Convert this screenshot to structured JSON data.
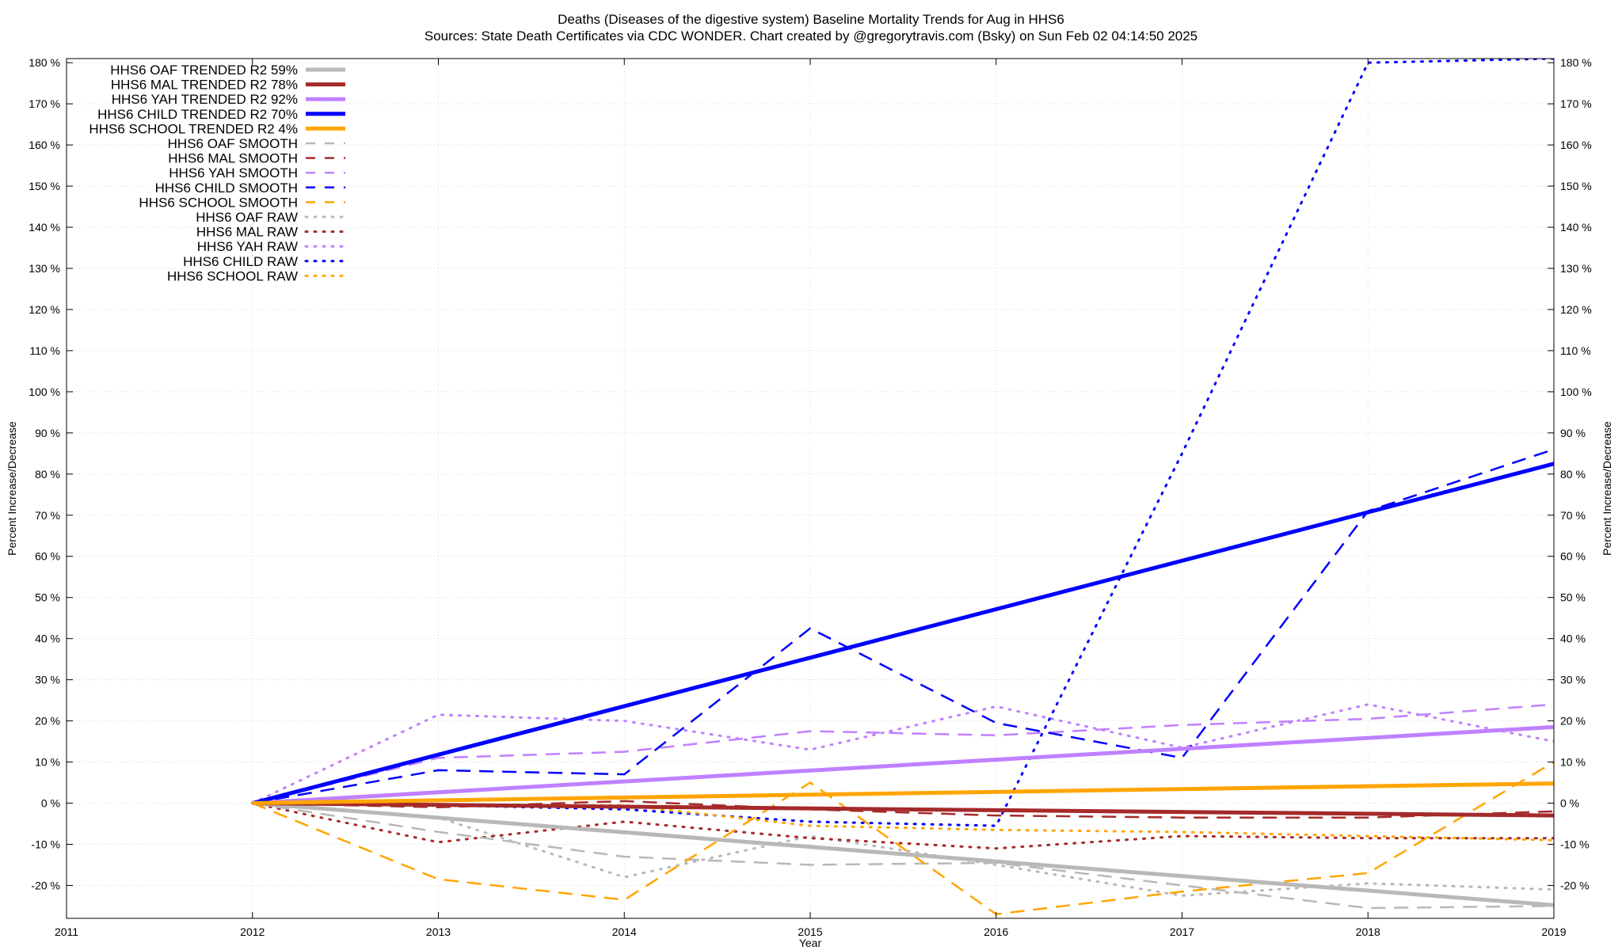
{
  "header": {
    "title_line1": "Deaths (Diseases of the digestive system)  Baseline Mortality Trends for Aug in HHS6",
    "title_line2": "Sources: State Death Certificates via CDC WONDER.              Chart created by @gregorytravis.com (Bsky) on Sun Feb 02 04:14:50 2025"
  },
  "chart_data": {
    "type": "line",
    "title": "Deaths (Diseases of the digestive system)  Baseline Mortality Trends for Aug in HHS6",
    "xlabel": "Year",
    "ylabel": "Percent Increase/Decrease",
    "y2label": "Percent Increase/Decrease",
    "xlim": [
      2011,
      2019
    ],
    "ylim": [
      -28,
      181
    ],
    "x_ticks": [
      2011,
      2012,
      2013,
      2014,
      2015,
      2016,
      2017,
      2018,
      2019
    ],
    "y_ticks": [
      -20,
      -10,
      0,
      10,
      20,
      30,
      40,
      50,
      60,
      70,
      80,
      90,
      100,
      110,
      120,
      130,
      140,
      150,
      160,
      170,
      180
    ],
    "y_tick_suffix": " %",
    "grid": true,
    "legend_position": "top-left",
    "series": [
      {
        "name": "HHS6 OAF TRENDED R2  59%",
        "style": "solid",
        "color": "#b8b8b8",
        "x": [
          2012,
          2019
        ],
        "values": [
          0,
          -24.8
        ]
      },
      {
        "name": "HHS6 MAL TRENDED R2  78%",
        "style": "solid",
        "color": "#a52a2a",
        "x": [
          2012,
          2019
        ],
        "values": [
          0,
          -3
        ]
      },
      {
        "name": "HHS6 YAH TRENDED R2  92%",
        "style": "solid",
        "color": "#c080ff",
        "x": [
          2012,
          2019
        ],
        "values": [
          0,
          18.5
        ]
      },
      {
        "name": "HHS6 CHILD TRENDED R2  70%",
        "style": "solid",
        "color": "#0000ff",
        "x": [
          2012,
          2019
        ],
        "values": [
          0,
          82.5
        ]
      },
      {
        "name": "HHS6 SCHOOL TRENDED R2   4%",
        "style": "solid",
        "color": "#ffa500",
        "x": [
          2012,
          2019
        ],
        "values": [
          0,
          4.8
        ]
      },
      {
        "name": "HHS6 OAF SMOOTH",
        "style": "dashed",
        "color": "#b8b8b8",
        "x": [
          2012,
          2013,
          2014,
          2015,
          2016,
          2017,
          2018,
          2019
        ],
        "values": [
          0,
          -7,
          -13,
          -15,
          -14.5,
          -20,
          -25.5,
          -25
        ]
      },
      {
        "name": "HHS6 MAL SMOOTH",
        "style": "dashed",
        "color": "#a52a2a",
        "x": [
          2012,
          2013,
          2014,
          2015,
          2016,
          2017,
          2018,
          2019
        ],
        "values": [
          0,
          -1,
          0.5,
          -1.5,
          -3,
          -3.5,
          -3.5,
          -2
        ]
      },
      {
        "name": "HHS6 YAH SMOOTH",
        "style": "dashed",
        "color": "#c080ff",
        "x": [
          2012,
          2013,
          2014,
          2015,
          2016,
          2017,
          2018,
          2019
        ],
        "values": [
          0,
          11,
          12.5,
          17.5,
          16.5,
          19,
          20.5,
          24
        ]
      },
      {
        "name": "HHS6 CHILD SMOOTH",
        "style": "dashed",
        "color": "#0000ff",
        "x": [
          2012,
          2013,
          2014,
          2015,
          2016,
          2017,
          2018,
          2019
        ],
        "values": [
          0,
          8,
          7,
          42.5,
          19.5,
          11,
          71,
          86
        ]
      },
      {
        "name": "HHS6 SCHOOL SMOOTH",
        "style": "dashed",
        "color": "#ffa500",
        "x": [
          2012,
          2013,
          2014,
          2015,
          2016,
          2017,
          2018,
          2019
        ],
        "values": [
          0,
          -18.5,
          -23.5,
          5,
          -27,
          -21.5,
          -17,
          10
        ]
      },
      {
        "name": "HHS6 OAF RAW",
        "style": "dotted",
        "color": "#b8b8b8",
        "x": [
          2012,
          2013,
          2014,
          2015,
          2016,
          2017,
          2018,
          2019
        ],
        "values": [
          0,
          -3.5,
          -18,
          -8,
          -15,
          -22.5,
          -19.5,
          -21
        ]
      },
      {
        "name": "HHS6 MAL RAW",
        "style": "dotted",
        "color": "#a52a2a",
        "x": [
          2012,
          2013,
          2014,
          2015,
          2016,
          2017,
          2018,
          2019
        ],
        "values": [
          0,
          -9.5,
          -4.5,
          -8.5,
          -11,
          -8,
          -8.5,
          -8.5
        ]
      },
      {
        "name": "HHS6 YAH RAW",
        "style": "dotted",
        "color": "#c080ff",
        "x": [
          2012,
          2013,
          2014,
          2015,
          2016,
          2017,
          2018,
          2019
        ],
        "values": [
          0,
          21.5,
          20,
          13,
          23.5,
          13.5,
          24,
          15
        ]
      },
      {
        "name": "HHS6 CHILD RAW",
        "style": "dotted",
        "color": "#0000ff",
        "x": [
          2012,
          2013,
          2014,
          2015,
          2016,
          2017,
          2018,
          2019
        ],
        "values": [
          0,
          -0.5,
          -1.5,
          -4.5,
          -5.5,
          85,
          180,
          181
        ]
      },
      {
        "name": "HHS6 SCHOOL RAW",
        "style": "dotted",
        "color": "#ffa500",
        "x": [
          2012,
          2013,
          2014,
          2015,
          2016,
          2017,
          2018,
          2019
        ],
        "values": [
          0,
          -0.5,
          -0.5,
          -5.5,
          -6.5,
          -7,
          -8,
          -9
        ]
      }
    ]
  }
}
